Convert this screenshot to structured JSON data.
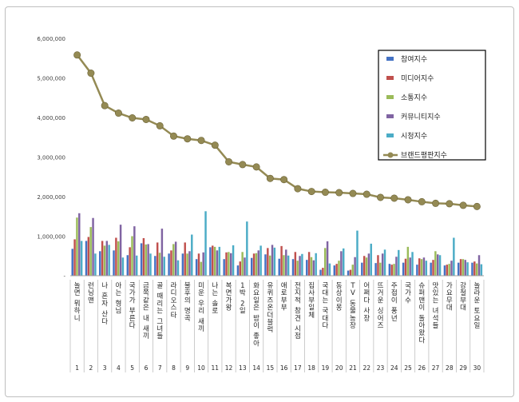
{
  "chart_data": {
    "type": "bar",
    "title": "",
    "xlabel": "",
    "ylabel": "",
    "ylim": [
      0,
      6000000
    ],
    "y_ticks": [
      "-",
      "1,000,000",
      "2,000,000",
      "3,000,000",
      "4,000,000",
      "5,000,000",
      "6,000,000"
    ],
    "grid": false,
    "legend_position": "top-right",
    "categories": [
      "놀면 뭐하니",
      "런닝맨",
      "나 혼자 산다",
      "아는 형님",
      "국가가 부른다",
      "금쪽같은 내 새끼",
      "골 때리는 그녀들",
      "라디오스타",
      "불후의 명곡",
      "미운 우리 새끼",
      "나는 솔로",
      "복면가왕",
      "1박 2일",
      "화요일은 밤이 좋아",
      "유퀴즈온더블럭",
      "애로부부",
      "전지적 참견 시점",
      "집사부일체",
      "국대는 국대다",
      "동상이몽",
      "TV 동물농장",
      "어쩌다 사장",
      "뜨거운 싱어즈",
      "주접이 풍년",
      "국가수",
      "슈퍼맨이 돌아왔다",
      "맛있는 녀석들",
      "가요무대",
      "강철부대",
      "놀라운 토요일"
    ],
    "index_labels": [
      "1",
      "2",
      "3",
      "4",
      "5",
      "6",
      "7",
      "8",
      "9",
      "10",
      "11",
      "12",
      "13",
      "14",
      "15",
      "16",
      "17",
      "18",
      "19",
      "20",
      "21",
      "22",
      "23",
      "24",
      "25",
      "26",
      "27",
      "28",
      "29",
      "30"
    ],
    "series": [
      {
        "name": "참여지수",
        "color": "#4472c4",
        "kind": "bar",
        "values": [
          680000,
          880000,
          620000,
          640000,
          520000,
          820000,
          500000,
          560000,
          560000,
          420000,
          720000,
          420000,
          260000,
          450000,
          540000,
          430000,
          420000,
          400000,
          150000,
          260000,
          130000,
          330000,
          320000,
          300000,
          330000,
          280000,
          330000,
          260000,
          330000,
          330000
        ]
      },
      {
        "name": "미디어지수",
        "color": "#c0504d",
        "kind": "bar",
        "values": [
          920000,
          980000,
          880000,
          960000,
          720000,
          950000,
          840000,
          640000,
          840000,
          560000,
          760000,
          590000,
          360000,
          560000,
          700000,
          750000,
          600000,
          600000,
          200000,
          300000,
          150000,
          500000,
          520000,
          280000,
          430000,
          440000,
          400000,
          280000,
          420000,
          360000
        ]
      },
      {
        "name": "소통지수",
        "color": "#9bbb59",
        "kind": "bar",
        "values": [
          1470000,
          1230000,
          760000,
          870000,
          1000000,
          790000,
          580000,
          800000,
          560000,
          350000,
          730000,
          600000,
          600000,
          570000,
          510000,
          520000,
          380000,
          470000,
          700000,
          380000,
          280000,
          460000,
          330000,
          300000,
          730000,
          420000,
          620000,
          300000,
          420000,
          310000
        ]
      },
      {
        "name": "커뮤니티지수",
        "color": "#8064a2",
        "kind": "bar",
        "values": [
          1580000,
          1460000,
          880000,
          1290000,
          1250000,
          800000,
          1190000,
          860000,
          620000,
          590000,
          640000,
          570000,
          460000,
          640000,
          780000,
          660000,
          500000,
          390000,
          870000,
          620000,
          470000,
          560000,
          560000,
          480000,
          460000,
          460000,
          540000,
          380000,
          400000,
          520000
        ]
      },
      {
        "name": "시청지수",
        "color": "#4bacc6",
        "kind": "bar",
        "values": [
          880000,
          560000,
          780000,
          460000,
          510000,
          560000,
          480000,
          390000,
          1040000,
          1630000,
          730000,
          770000,
          1370000,
          760000,
          710000,
          510000,
          550000,
          570000,
          310000,
          690000,
          1140000,
          810000,
          660000,
          650000,
          600000,
          380000,
          520000,
          960000,
          340000,
          290000
        ]
      },
      {
        "name": "브랜드평판지수",
        "color": "#948a54",
        "kind": "line",
        "values": [
          5580000,
          5120000,
          4300000,
          4110000,
          3990000,
          3950000,
          3790000,
          3530000,
          3460000,
          3420000,
          3300000,
          2880000,
          2810000,
          2750000,
          2460000,
          2430000,
          2200000,
          2130000,
          2110000,
          2100000,
          2080000,
          2060000,
          1980000,
          1960000,
          1920000,
          1870000,
          1830000,
          1820000,
          1780000,
          1750000
        ]
      }
    ]
  }
}
